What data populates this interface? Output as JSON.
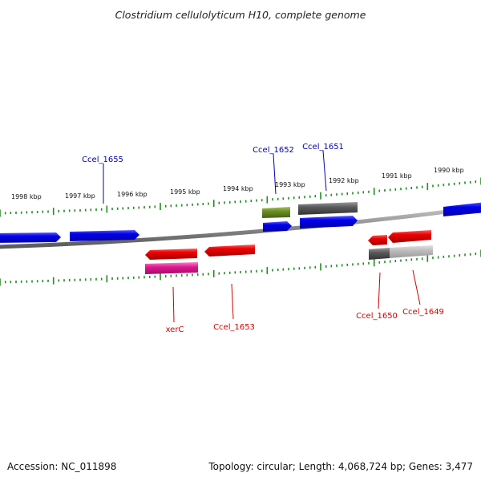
{
  "title": "Clostridium cellulolyticum H10, complete genome",
  "footer": {
    "accession": "Accession: NC_011898",
    "summary": "Topology: circular; Length: 4,068,724 bp; Genes: 3,477"
  },
  "ruler_labels": [
    "1998 kbp",
    "1997 kbp",
    "1996 kbp",
    "1995 kbp",
    "1994 kbp",
    "1993 kbp",
    "1992 kbp",
    "1991 kbp",
    "1990 kbp"
  ],
  "gene_labels": {
    "ccel_1655": "Ccel_1655",
    "ccel_1652": "Ccel_1652",
    "ccel_1651": "Ccel_1651",
    "xerc": "xerC",
    "ccel_1653": "Ccel_1653",
    "ccel_1650": "Ccel_1650",
    "ccel_1649": "Ccel_1649"
  },
  "colors": {
    "forward_gene": "#0000dd",
    "reverse_gene": "#ee0000",
    "rna_feature": "#6b8e23",
    "pseudo_feature": "#555555",
    "misc_feature": "#dd1188",
    "light_feature": "#bbbbbb",
    "tick": "#228b22",
    "backbone": "#808080",
    "forward_label": "#0000aa",
    "reverse_label": "#cc0000"
  }
}
